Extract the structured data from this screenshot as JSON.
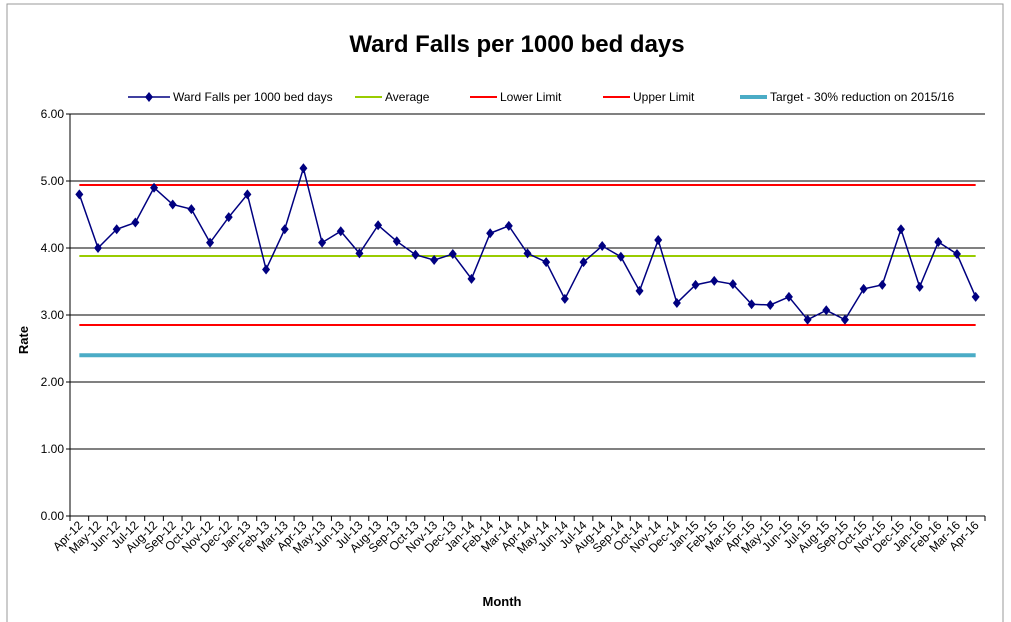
{
  "chart_data": {
    "type": "line",
    "title": "Ward Falls per 1000 bed days",
    "x_label": "Month",
    "y_label": "Rate",
    "categories": [
      "Apr-12",
      "May-12",
      "Jun-12",
      "Jul-12",
      "Aug-12",
      "Sep-12",
      "Oct-12",
      "Nov-12",
      "Dec-12",
      "Jan-13",
      "Feb-13",
      "Mar-13",
      "Apr-13",
      "May-13",
      "Jun-13",
      "Jul-13",
      "Aug-13",
      "Sep-13",
      "Oct-13",
      "Nov-13",
      "Dec-13",
      "Jan-14",
      "Feb-14",
      "Mar-14",
      "Apr-14",
      "May-14",
      "Jun-14",
      "Jul-14",
      "Aug-14",
      "Sep-14",
      "Oct-14",
      "Nov-14",
      "Dec-14",
      "Jan-15",
      "Feb-15",
      "Mar-15",
      "Apr-15",
      "May-15",
      "Jun-15",
      "Jul-15",
      "Aug-15",
      "Sep-15",
      "Oct-15",
      "Nov-15",
      "Dec-15",
      "Jan-16",
      "Feb-16",
      "Mar-16",
      "Apr-16"
    ],
    "series": [
      {
        "name": "Ward Falls per 1000 bed days",
        "color": "#000080",
        "marker": "diamond",
        "values": [
          4.8,
          4.0,
          4.28,
          4.38,
          4.9,
          4.65,
          4.58,
          4.08,
          4.46,
          4.8,
          3.68,
          4.28,
          5.19,
          4.08,
          4.25,
          3.92,
          4.34,
          4.1,
          3.9,
          3.82,
          3.91,
          3.54,
          4.22,
          4.33,
          3.92,
          3.79,
          3.24,
          3.79,
          4.03,
          3.87,
          3.36,
          4.12,
          3.18,
          3.45,
          3.51,
          3.46,
          3.16,
          3.15,
          3.27,
          2.93,
          3.07,
          2.93,
          3.39,
          3.45,
          4.28,
          3.42,
          4.09,
          3.91,
          3.27
        ]
      },
      {
        "name": "Average",
        "color": "#99cc00",
        "value": 3.88
      },
      {
        "name": "Lower Limit",
        "color": "#ff0000",
        "value": 2.85
      },
      {
        "name": "Upper Limit",
        "color": "#ff0000",
        "value": 4.94
      },
      {
        "name": "Target - 30% reduction on 2015/16",
        "color": "#4bacc6",
        "value": 2.4
      }
    ],
    "ylim": [
      0,
      6
    ],
    "yticks": [
      {
        "value": 0,
        "label": "0.00"
      },
      {
        "value": 1,
        "label": "1.00"
      },
      {
        "value": 2,
        "label": "2.00"
      },
      {
        "value": 3,
        "label": "3.00"
      },
      {
        "value": 4,
        "label": "4.00"
      },
      {
        "value": 5,
        "label": "5.00"
      },
      {
        "value": 6,
        "label": "6.00"
      }
    ],
    "grid": true,
    "legend": "top"
  }
}
